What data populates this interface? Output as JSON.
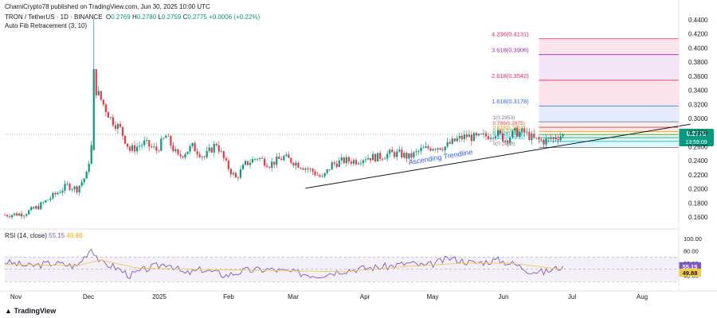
{
  "header": {
    "published": "ChamiCrypto78 published on TradingView.com, Jun 30, 2025 10:00 UTC",
    "symbol": "TRON / TetherUS · 1D · BINANCE",
    "open_label": "O",
    "open": "0.2769",
    "high_label": "H",
    "high": "0.2780",
    "low_label": "L",
    "low": "0.2759",
    "close_label": "C",
    "close": "0.2775",
    "change": "+0.0006 (+0.22%)",
    "indicator": "Auto Fib Retracement (3, 10)"
  },
  "rsi_header": {
    "label": "RSI (14, close)",
    "value": "55.15",
    "ma": "49.88"
  },
  "price_badge": {
    "price": "0.2775",
    "countdown": "13:59:09"
  },
  "rsi_badges": {
    "rsi": "55.15",
    "ma": "49.88"
  },
  "annotation": "Ascending Trendline",
  "logo": "TradingView",
  "colors": {
    "up": "#089981",
    "down": "#f23645",
    "trend": "#131722",
    "rsi": "#7e57c2",
    "rsi_ma": "#f7c948",
    "annotation": "#2962ff"
  },
  "chart_data": {
    "type": "candlestick",
    "y_axis_ticks": [
      "0.4400",
      "0.4200",
      "0.4000",
      "0.3800",
      "0.3600",
      "0.3400",
      "0.3200",
      "0.3000",
      "0.2800",
      "0.2600",
      "0.2400",
      "0.2200",
      "0.2000",
      "0.1800",
      "0.1600"
    ],
    "ylim": [
      0.15,
      0.45
    ],
    "x_axis_ticks": [
      "Nov",
      "Dec",
      "2025",
      "Feb",
      "Mar",
      "Apr",
      "May",
      "Jun",
      "Jul",
      "Aug"
    ],
    "fib_levels": [
      {
        "label": "4.236(0.4131)",
        "value": 0.4131,
        "color": "#e91e63"
      },
      {
        "label": "3.618(0.3906)",
        "value": 0.3906,
        "color": "#9c27b0"
      },
      {
        "label": "2.618(0.3542)",
        "value": 0.3542,
        "color": "#e91e63"
      },
      {
        "label": "1.618(0.3178)",
        "value": 0.3178,
        "color": "#2962ff"
      },
      {
        "label": "1(0.2953)",
        "value": 0.2953,
        "color": "#787b86"
      },
      {
        "label": "0.786(0.2875)",
        "value": 0.2875,
        "color": "#f23645"
      },
      {
        "label": "0.618(0.2814)",
        "value": 0.2814,
        "color": "#ff9800"
      },
      {
        "label": "0.5(0.2771)",
        "value": 0.2771,
        "color": "#4caf50"
      },
      {
        "label": "0.382(0.2728)",
        "value": 0.2728,
        "color": "#089981"
      },
      {
        "label": "0.236(0.2675)",
        "value": 0.2675,
        "color": "#00bcd4"
      },
      {
        "label": "0(0.2589)",
        "value": 0.2589,
        "color": "#787b86"
      }
    ],
    "anchors": [
      {
        "day": 0,
        "price": 0.163
      },
      {
        "day": 8,
        "price": 0.165
      },
      {
        "day": 14,
        "price": 0.175
      },
      {
        "day": 20,
        "price": 0.19
      },
      {
        "day": 26,
        "price": 0.205
      },
      {
        "day": 30,
        "price": 0.2
      },
      {
        "day": 34,
        "price": 0.22
      },
      {
        "day": 36,
        "price": 0.26
      },
      {
        "day": 37,
        "price": 0.42
      },
      {
        "day": 38,
        "price": 0.34
      },
      {
        "day": 41,
        "price": 0.32
      },
      {
        "day": 44,
        "price": 0.3
      },
      {
        "day": 48,
        "price": 0.285
      },
      {
        "day": 52,
        "price": 0.255
      },
      {
        "day": 58,
        "price": 0.265
      },
      {
        "day": 63,
        "price": 0.255
      },
      {
        "day": 67,
        "price": 0.275
      },
      {
        "day": 72,
        "price": 0.245
      },
      {
        "day": 78,
        "price": 0.26
      },
      {
        "day": 83,
        "price": 0.245
      },
      {
        "day": 88,
        "price": 0.265
      },
      {
        "day": 92,
        "price": 0.235
      },
      {
        "day": 96,
        "price": 0.215
      },
      {
        "day": 100,
        "price": 0.235
      },
      {
        "day": 105,
        "price": 0.245
      },
      {
        "day": 110,
        "price": 0.235
      },
      {
        "day": 116,
        "price": 0.245
      },
      {
        "day": 122,
        "price": 0.235
      },
      {
        "day": 128,
        "price": 0.225
      },
      {
        "day": 132,
        "price": 0.215
      },
      {
        "day": 136,
        "price": 0.235
      },
      {
        "day": 141,
        "price": 0.24
      },
      {
        "day": 146,
        "price": 0.24
      },
      {
        "day": 150,
        "price": 0.245
      },
      {
        "day": 155,
        "price": 0.245
      },
      {
        "day": 160,
        "price": 0.25
      },
      {
        "day": 164,
        "price": 0.25
      },
      {
        "day": 168,
        "price": 0.245
      },
      {
        "day": 173,
        "price": 0.255
      },
      {
        "day": 178,
        "price": 0.26
      },
      {
        "day": 183,
        "price": 0.26
      },
      {
        "day": 188,
        "price": 0.27
      },
      {
        "day": 192,
        "price": 0.275
      },
      {
        "day": 196,
        "price": 0.272
      },
      {
        "day": 200,
        "price": 0.275
      },
      {
        "day": 204,
        "price": 0.28
      },
      {
        "day": 208,
        "price": 0.27
      },
      {
        "day": 212,
        "price": 0.28
      },
      {
        "day": 216,
        "price": 0.28
      },
      {
        "day": 220,
        "price": 0.27
      },
      {
        "day": 224,
        "price": 0.268
      },
      {
        "day": 228,
        "price": 0.272
      },
      {
        "day": 232,
        "price": 0.2775
      }
    ],
    "trendline": {
      "start": {
        "day": 125,
        "price": 0.201
      },
      "end": {
        "day": 285,
        "price": 0.292
      }
    },
    "rsi_ylim": [
      20,
      100
    ],
    "rsi_ticks": [
      "100.00",
      "80.00",
      "60.00",
      "40.00"
    ],
    "rsi_band": [
      30,
      70
    ],
    "rsi_anchors": [
      {
        "day": 0,
        "rsi": 62
      },
      {
        "day": 10,
        "rsi": 55
      },
      {
        "day": 20,
        "rsi": 60
      },
      {
        "day": 30,
        "rsi": 55
      },
      {
        "day": 36,
        "rsi": 85
      },
      {
        "day": 40,
        "rsi": 60
      },
      {
        "day": 45,
        "rsi": 55
      },
      {
        "day": 52,
        "rsi": 40
      },
      {
        "day": 60,
        "rsi": 52
      },
      {
        "day": 68,
        "rsi": 60
      },
      {
        "day": 75,
        "rsi": 42
      },
      {
        "day": 82,
        "rsi": 50
      },
      {
        "day": 92,
        "rsi": 40
      },
      {
        "day": 100,
        "rsi": 48
      },
      {
        "day": 110,
        "rsi": 50
      },
      {
        "day": 120,
        "rsi": 45
      },
      {
        "day": 130,
        "rsi": 40
      },
      {
        "day": 140,
        "rsi": 48
      },
      {
        "day": 150,
        "rsi": 52
      },
      {
        "day": 160,
        "rsi": 55
      },
      {
        "day": 168,
        "rsi": 60
      },
      {
        "day": 175,
        "rsi": 55
      },
      {
        "day": 185,
        "rsi": 68
      },
      {
        "day": 195,
        "rsi": 60
      },
      {
        "day": 205,
        "rsi": 65
      },
      {
        "day": 212,
        "rsi": 58
      },
      {
        "day": 218,
        "rsi": 48
      },
      {
        "day": 224,
        "rsi": 45
      },
      {
        "day": 232,
        "rsi": 55.15
      }
    ],
    "rsi_ma_anchors": [
      {
        "day": 0,
        "rsi": 58
      },
      {
        "day": 30,
        "rsi": 56
      },
      {
        "day": 40,
        "rsi": 65
      },
      {
        "day": 55,
        "rsi": 52
      },
      {
        "day": 80,
        "rsi": 50
      },
      {
        "day": 110,
        "rsi": 48
      },
      {
        "day": 140,
        "rsi": 46
      },
      {
        "day": 165,
        "rsi": 54
      },
      {
        "day": 190,
        "rsi": 60
      },
      {
        "day": 210,
        "rsi": 60
      },
      {
        "day": 232,
        "rsi": 49.88
      }
    ]
  }
}
